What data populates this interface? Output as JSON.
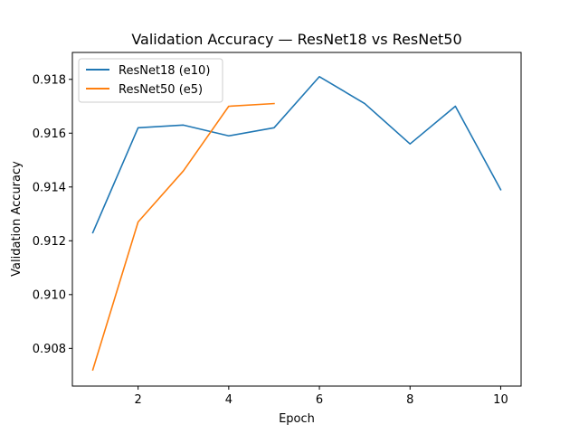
{
  "chart_data": {
    "type": "line",
    "title": "Validation Accuracy — ResNet18 vs ResNet50",
    "xlabel": "Epoch",
    "ylabel": "Validation Accuracy",
    "xlim": [
      0.55,
      10.45
    ],
    "ylim": [
      0.9066,
      0.919
    ],
    "xticks": [
      2,
      4,
      6,
      8,
      10
    ],
    "yticks": [
      0.908,
      0.91,
      0.912,
      0.914,
      0.916,
      0.918
    ],
    "ytick_labels": [
      "0.908",
      "0.910",
      "0.912",
      "0.914",
      "0.916",
      "0.918"
    ],
    "grid": false,
    "legend_position": "top-left",
    "series": [
      {
        "name": "ResNet18 (e10)",
        "color": "#1f77b4",
        "x": [
          1,
          2,
          3,
          4,
          5,
          6,
          7,
          8,
          9,
          10
        ],
        "y": [
          0.9123,
          0.9162,
          0.9163,
          0.9159,
          0.9162,
          0.9181,
          0.9171,
          0.9156,
          0.917,
          0.9139
        ]
      },
      {
        "name": "ResNet50 (e5)",
        "color": "#ff7f0e",
        "x": [
          1,
          2,
          3,
          4,
          5
        ],
        "y": [
          0.9072,
          0.9127,
          0.9146,
          0.917,
          0.9171
        ]
      }
    ]
  }
}
